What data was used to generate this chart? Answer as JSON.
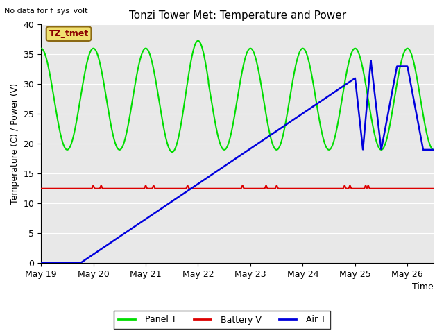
{
  "title": "Tonzi Tower Met: Temperature and Power",
  "ylabel": "Temperature (C) / Power (V)",
  "xlabel": "Time",
  "no_data_text": "No data for f_sys_volt",
  "legend_box_text": "TZ_tmet",
  "ylim": [
    0,
    40
  ],
  "yticks": [
    0,
    5,
    10,
    15,
    20,
    25,
    30,
    35,
    40
  ],
  "xtick_labels": [
    "May 19",
    "May 20",
    "May 21",
    "May 22",
    "May 23",
    "May 24",
    "May 25",
    "May 26"
  ],
  "xtick_positions": [
    0,
    1,
    2,
    3,
    4,
    5,
    6,
    7
  ],
  "xlim": [
    0,
    7.5
  ],
  "panel_color": "#00DD00",
  "battery_color": "#DD0000",
  "air_color": "#0000DD",
  "bg_color": "#E8E8E8",
  "panel_lw": 1.5,
  "battery_lw": 1.5,
  "air_lw": 1.8,
  "figsize": [
    6.4,
    4.8
  ],
  "dpi": 100
}
